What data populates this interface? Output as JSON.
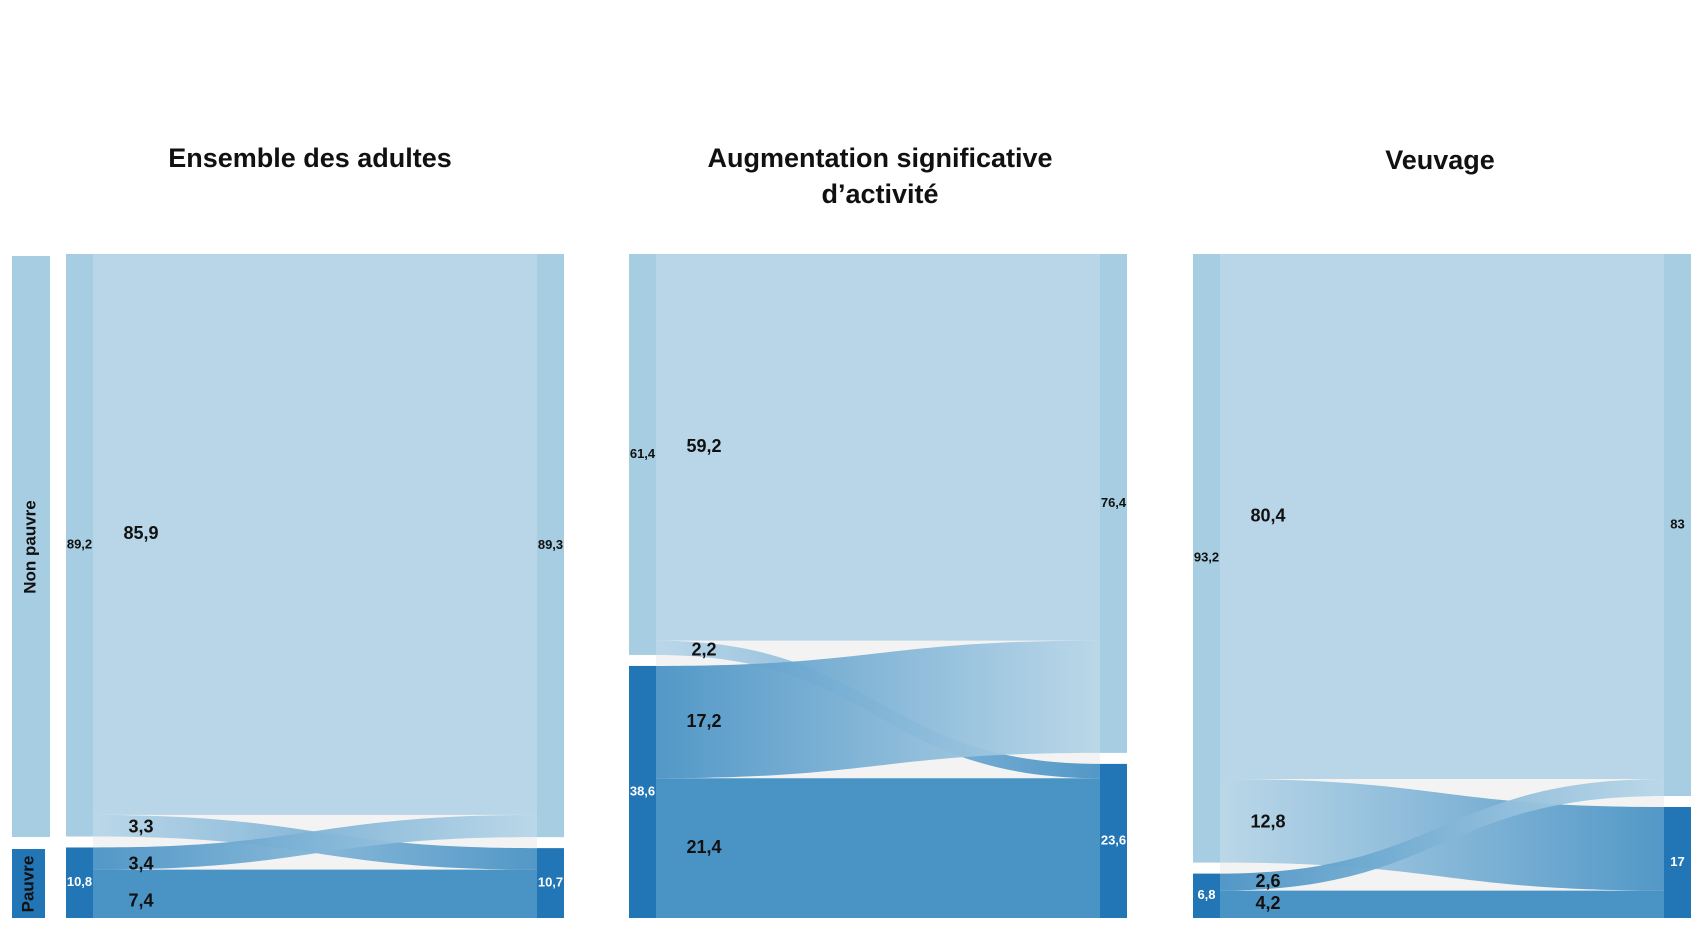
{
  "colors": {
    "non_pauvre_node": "#a6cde1",
    "non_pauvre_flow": "#b8d6e8",
    "pauvre_node": "#2276b5",
    "pauvre_flow": "#4a93c5",
    "gap": "#f3f3f3",
    "label_dark": "#111111",
    "label_light": "#ffffff"
  },
  "side_labels": {
    "non_pauvre": "Non pauvre",
    "pauvre": "Pauvre"
  },
  "chart_data": [
    {
      "type": "sankey",
      "title": [
        "Ensemble des adultes"
      ],
      "nodes_left": [
        {
          "name": "Non pauvre",
          "value": "89,2"
        },
        {
          "name": "Pauvre",
          "value": "10,8"
        }
      ],
      "nodes_right": [
        {
          "name": "Non pauvre",
          "value": "89,3"
        },
        {
          "name": "Pauvre",
          "value": "10,7"
        }
      ],
      "flows": [
        {
          "from": "Non pauvre",
          "to": "Non pauvre",
          "value": "85,9"
        },
        {
          "from": "Non pauvre",
          "to": "Pauvre",
          "value": "3,3"
        },
        {
          "from": "Pauvre",
          "to": "Non pauvre",
          "value": "3,4"
        },
        {
          "from": "Pauvre",
          "to": "Pauvre",
          "value": "7,4"
        }
      ]
    },
    {
      "type": "sankey",
      "title": [
        "Augmentation significative",
        "d’activité"
      ],
      "nodes_left": [
        {
          "name": "Non pauvre",
          "value": "61,4"
        },
        {
          "name": "Pauvre",
          "value": "38,6"
        }
      ],
      "nodes_right": [
        {
          "name": "Non pauvre",
          "value": "76,4"
        },
        {
          "name": "Pauvre",
          "value": "23,6"
        }
      ],
      "flows": [
        {
          "from": "Non pauvre",
          "to": "Non pauvre",
          "value": "59,2"
        },
        {
          "from": "Non pauvre",
          "to": "Pauvre",
          "value": "2,2"
        },
        {
          "from": "Pauvre",
          "to": "Non pauvre",
          "value": "17,2"
        },
        {
          "from": "Pauvre",
          "to": "Pauvre",
          "value": "21,4"
        }
      ]
    },
    {
      "type": "sankey",
      "title": [
        "Veuvage"
      ],
      "nodes_left": [
        {
          "name": "Non pauvre",
          "value": "93,2"
        },
        {
          "name": "Pauvre",
          "value": "6,8"
        }
      ],
      "nodes_right": [
        {
          "name": "Non pauvre",
          "value": "83"
        },
        {
          "name": "Pauvre",
          "value": "17"
        }
      ],
      "flows": [
        {
          "from": "Non pauvre",
          "to": "Non pauvre",
          "value": "80,4"
        },
        {
          "from": "Non pauvre",
          "to": "Pauvre",
          "value": "12,8"
        },
        {
          "from": "Pauvre",
          "to": "Non pauvre",
          "value": "2,6"
        },
        {
          "from": "Pauvre",
          "to": "Pauvre",
          "value": "4,2"
        }
      ]
    }
  ]
}
